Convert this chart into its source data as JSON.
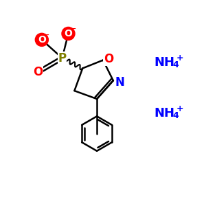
{
  "bg_color": "#ffffff",
  "atom_colors": {
    "C": "#000000",
    "N": "#0000ff",
    "O": "#ff0000",
    "P": "#808000",
    "NH4": "#0000ff"
  },
  "line_color": "#000000",
  "figsize": [
    3.0,
    3.0
  ],
  "dpi": 100
}
